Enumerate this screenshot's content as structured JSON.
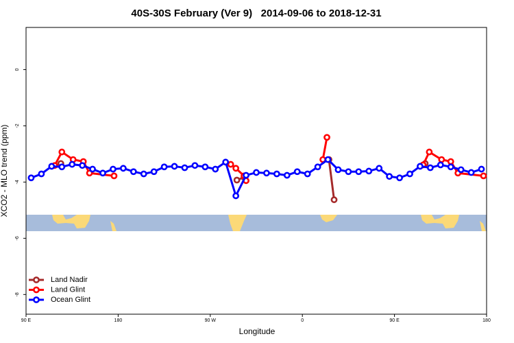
{
  "chart_data": {
    "type": "line",
    "title": "40S-30S February (Ver 9)   2014-09-06 to 2018-12-31",
    "x_label": "Longitude",
    "y_label": "XCO2 - MLO trend (ppm)",
    "xlim": [
      90,
      540
    ],
    "xticks": [
      {
        "value": 90,
        "label": "90 E"
      },
      180,
      {
        "value": 270,
        "label": "90 W"
      },
      {
        "value": 360,
        "label": "0"
      },
      {
        "value": 450,
        "label": "90 E"
      },
      {
        "value": 540,
        "label": "180"
      }
    ],
    "ylim": [
      -8.7,
      1.5
    ],
    "yticks": [
      0,
      -2,
      -4,
      -6,
      -8
    ],
    "legend": "bottom-left",
    "series": [
      {
        "name": "Land Nadir",
        "color": "#a52a2a",
        "x": [
          124,
          null,
          296,
          303,
          null,
          386,
          391,
          null,
          480
        ],
        "values": [
          -3.34,
          null,
          -3.93,
          -3.83,
          null,
          -3.2,
          -4.63,
          null,
          -3.34
        ]
      },
      {
        "name": "Land Glint",
        "color": "#ff0000",
        "x": [
          118,
          125,
          136,
          146,
          152,
          176,
          null,
          290,
          295,
          303,
          305,
          null,
          380,
          384,
          null,
          478,
          484,
          496,
          505,
          512,
          537
        ],
        "values": [
          -3.41,
          -2.93,
          -3.2,
          -3.27,
          -3.68,
          -3.78,
          null,
          -3.37,
          -3.51,
          -3.78,
          -3.95,
          null,
          -3.2,
          -2.41,
          null,
          -3.39,
          -2.93,
          -3.2,
          -3.27,
          -3.68,
          -3.78
        ]
      },
      {
        "name": "Ocean Glint",
        "color": "#0000ff",
        "x": [
          95,
          105,
          115,
          125,
          135,
          145,
          155,
          165,
          175,
          185,
          195,
          205,
          215,
          225,
          235,
          245,
          255,
          265,
          275,
          285,
          295,
          305,
          315,
          325,
          335,
          345,
          355,
          365,
          375,
          385,
          395,
          405,
          415,
          425,
          435,
          445,
          455,
          465,
          475,
          485,
          495,
          505,
          515,
          525,
          535
        ],
        "values": [
          -3.85,
          -3.71,
          -3.44,
          -3.46,
          -3.37,
          -3.41,
          -3.54,
          -3.68,
          -3.54,
          -3.51,
          -3.63,
          -3.71,
          -3.63,
          -3.46,
          -3.44,
          -3.49,
          -3.41,
          -3.46,
          -3.54,
          -3.29,
          -4.49,
          -3.76,
          -3.66,
          -3.68,
          -3.71,
          -3.76,
          -3.63,
          -3.71,
          -3.46,
          -3.2,
          -3.56,
          -3.63,
          -3.63,
          -3.61,
          -3.51,
          -3.8,
          -3.85,
          -3.71,
          -3.44,
          -3.49,
          -3.39,
          -3.46,
          -3.56,
          -3.66,
          -3.54
        ]
      }
    ]
  }
}
